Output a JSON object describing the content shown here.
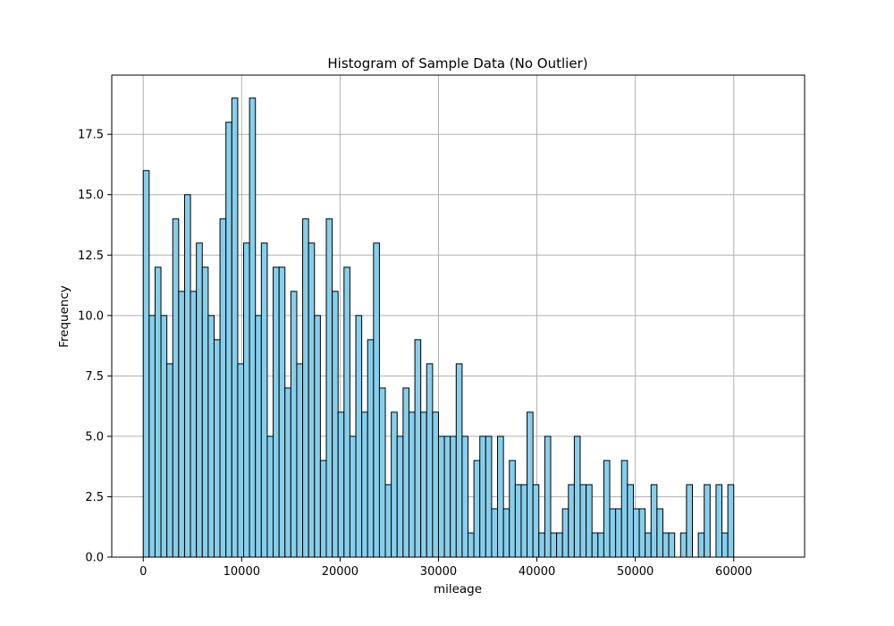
{
  "chart_data": {
    "type": "bar",
    "title": "Histogram of Sample Data (No Outlier)",
    "xlabel": "mileage",
    "ylabel": "Frequency",
    "xlim": [
      -3200,
      67200
    ],
    "ylim": [
      0,
      19.95
    ],
    "bin_start": 0,
    "bin_width": 600,
    "x_ticks": [
      0,
      10000,
      20000,
      30000,
      40000,
      50000,
      60000
    ],
    "x_tick_labels": [
      "0",
      "10000",
      "20000",
      "30000",
      "40000",
      "50000",
      "60000"
    ],
    "y_ticks": [
      0,
      2.5,
      5,
      7.5,
      10,
      12.5,
      15,
      17.5
    ],
    "y_tick_labels": [
      "0.0",
      "2.5",
      "5.0",
      "7.5",
      "10.0",
      "12.5",
      "15.0",
      "17.5"
    ],
    "grid": true,
    "bar_color": "#87ceeb",
    "edge_color": "#000000",
    "values": [
      16,
      10,
      12,
      10,
      8,
      14,
      11,
      15,
      11,
      13,
      12,
      10,
      9,
      14,
      18,
      19,
      8,
      13,
      19,
      10,
      13,
      5,
      12,
      12,
      7,
      11,
      8,
      14,
      13,
      10,
      4,
      14,
      11,
      6,
      12,
      5,
      10,
      6,
      9,
      13,
      7,
      3,
      6,
      5,
      7,
      6,
      9,
      6,
      8,
      6,
      5,
      5,
      5,
      8,
      5,
      1,
      4,
      5,
      5,
      2,
      5,
      2,
      4,
      3,
      3,
      6,
      3,
      1,
      5,
      1,
      1,
      2,
      3,
      5,
      3,
      3,
      1,
      1,
      4,
      2,
      2,
      4,
      3,
      2,
      2,
      1,
      3,
      2,
      1,
      1,
      0,
      1,
      3,
      0,
      1,
      3,
      0,
      3,
      1,
      3
    ]
  }
}
